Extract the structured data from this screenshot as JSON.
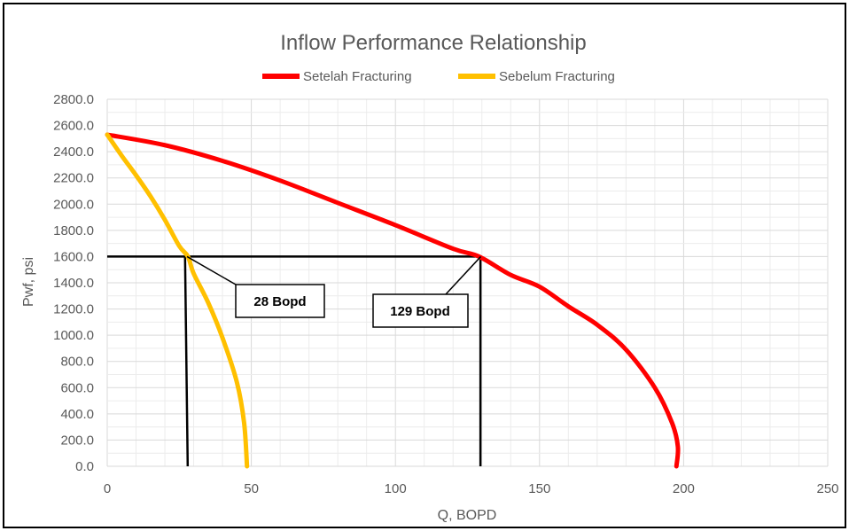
{
  "chart_data": {
    "type": "line",
    "title": "Inflow Performance Relationship",
    "xlabel": "Q, BOPD",
    "ylabel": "Pwf, psi",
    "xlim": [
      0,
      250
    ],
    "ylim": [
      0,
      2800
    ],
    "x_ticks": [
      "0",
      "50",
      "100",
      "150",
      "200",
      "250"
    ],
    "y_ticks": [
      "0.0",
      "200.0",
      "400.0",
      "600.0",
      "800.0",
      "1000.0",
      "1200.0",
      "1400.0",
      "1600.0",
      "1800.0",
      "2000.0",
      "2200.0",
      "2400.0",
      "2600.0",
      "2800.0"
    ],
    "grid": true,
    "legend_position": "top",
    "series": [
      {
        "name": "Setelah Fracturing",
        "color": "#ff0000",
        "points": [
          [
            0,
            2530
          ],
          [
            20,
            2450
          ],
          [
            40,
            2330
          ],
          [
            60,
            2180
          ],
          [
            80,
            2010
          ],
          [
            100,
            1840
          ],
          [
            120,
            1660
          ],
          [
            129,
            1600
          ],
          [
            140,
            1460
          ],
          [
            150,
            1370
          ],
          [
            160,
            1220
          ],
          [
            170,
            1080
          ],
          [
            180,
            890
          ],
          [
            190,
            600
          ],
          [
            196,
            330
          ],
          [
            198,
            150
          ],
          [
            197.5,
            0
          ]
        ]
      },
      {
        "name": "Sebelum Fracturing",
        "color": "#ffc000",
        "points": [
          [
            0,
            2530
          ],
          [
            5,
            2370
          ],
          [
            10,
            2220
          ],
          [
            15,
            2060
          ],
          [
            20,
            1880
          ],
          [
            25,
            1680
          ],
          [
            28,
            1600
          ],
          [
            30,
            1470
          ],
          [
            35,
            1250
          ],
          [
            40,
            980
          ],
          [
            45,
            640
          ],
          [
            47.5,
            330
          ],
          [
            48.5,
            0
          ]
        ]
      }
    ],
    "reference_lines": {
      "horizontal_y": 1600,
      "vertical_x": [
        27,
        129.5
      ],
      "color": "#000000"
    },
    "annotations": [
      {
        "text": "28 Bopd",
        "x": 28,
        "y": 1600
      },
      {
        "text": "129 Bopd",
        "x": 129,
        "y": 1600
      }
    ]
  }
}
